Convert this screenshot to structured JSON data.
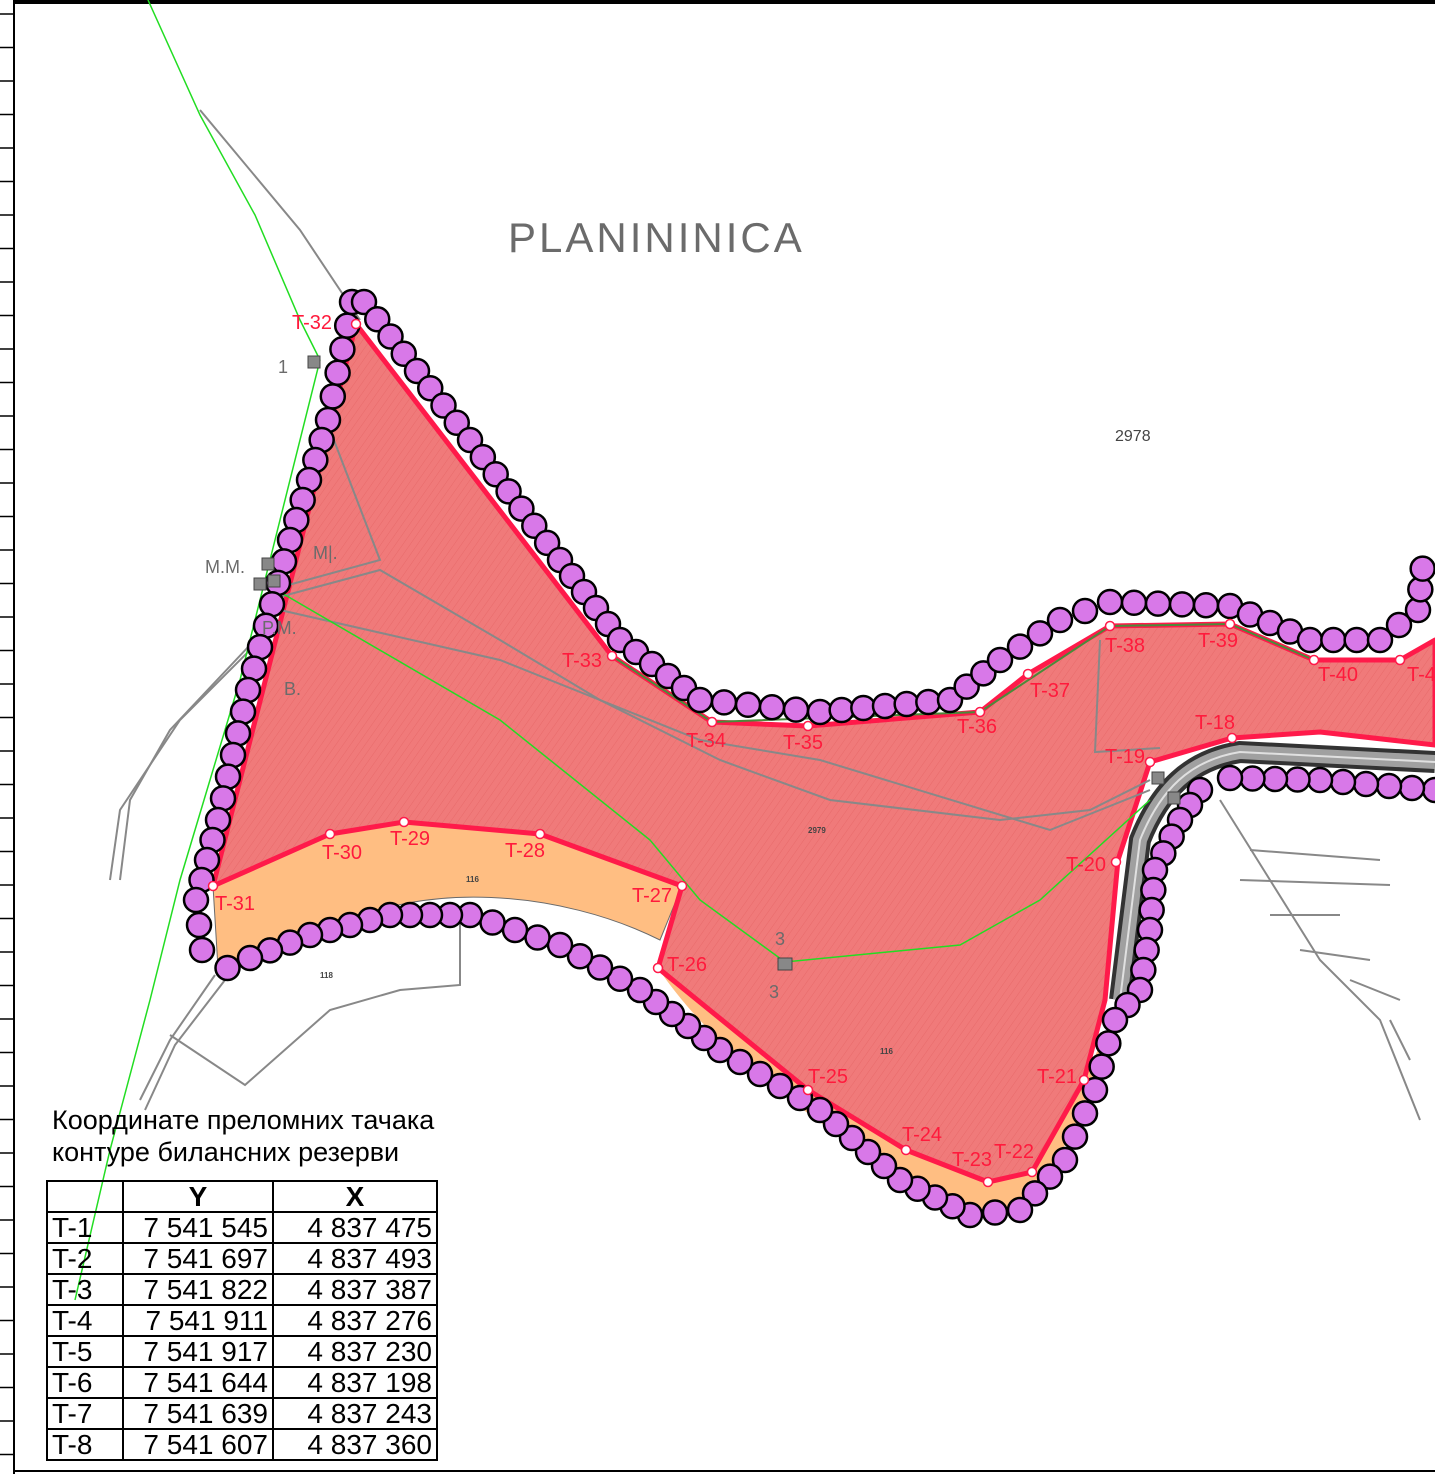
{
  "map": {
    "locality_name": "PLANININICA",
    "parcel_main": "2978",
    "parcel_2979": "2979",
    "parcel_116_a": "116",
    "parcel_116_b": "116",
    "parcel_118": "118",
    "labels": {
      "mm": "M.M.",
      "m": "M|.",
      "pm": "P.M.",
      "v": "B.",
      "one": "1",
      "three_top": "3",
      "three_bottom": "3"
    },
    "points": [
      {
        "id": "T-18"
      },
      {
        "id": "T-19"
      },
      {
        "id": "T-20"
      },
      {
        "id": "T-21"
      },
      {
        "id": "T-22"
      },
      {
        "id": "T-23"
      },
      {
        "id": "T-24"
      },
      {
        "id": "T-25"
      },
      {
        "id": "T-26"
      },
      {
        "id": "T-27"
      },
      {
        "id": "T-28"
      },
      {
        "id": "T-29"
      },
      {
        "id": "T-30"
      },
      {
        "id": "T-31"
      },
      {
        "id": "T-32"
      },
      {
        "id": "T-33"
      },
      {
        "id": "T-34"
      },
      {
        "id": "T-35"
      },
      {
        "id": "T-36"
      },
      {
        "id": "T-37"
      },
      {
        "id": "T-38"
      },
      {
        "id": "T-39"
      },
      {
        "id": "T-40"
      },
      {
        "id": "T-4"
      }
    ],
    "colors": {
      "reserve_fill": "#f07878",
      "buffer_fill": "#ffbe82",
      "boundary": "#ff1a4a",
      "circle_fill": "#d878e8",
      "green_line": "#22dd22",
      "road": "#9a9a9a"
    }
  },
  "coordinates": {
    "caption_line1": "Координате преломних тачака",
    "caption_line2": "контуре билансних резерви",
    "headers": [
      "",
      "Y",
      "X"
    ],
    "rows": [
      [
        "T-1",
        "7 541 545",
        "4 837 475"
      ],
      [
        "T-2",
        "7 541 697",
        "4 837 493"
      ],
      [
        "T-3",
        "7 541 822",
        "4 837 387"
      ],
      [
        "T-4",
        "7 541 911",
        "4 837 276"
      ],
      [
        "T-5",
        "7 541 917",
        "4 837 230"
      ],
      [
        "T-6",
        "7 541 644",
        "4 837 198"
      ],
      [
        "T-7",
        "7 541 639",
        "4 837 243"
      ],
      [
        "T-8",
        "7 541 607",
        "4 837 360"
      ]
    ]
  }
}
